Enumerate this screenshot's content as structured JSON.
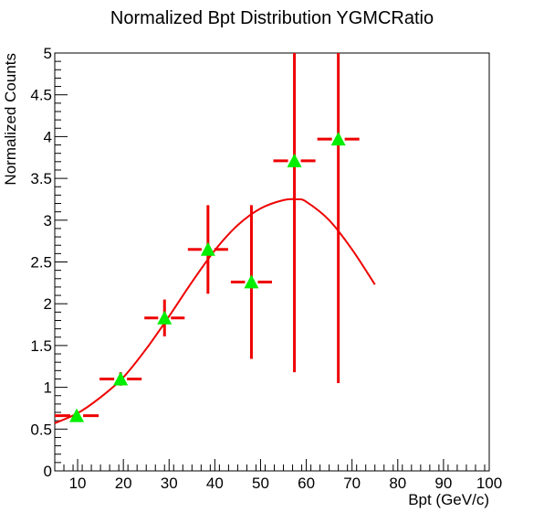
{
  "chart_data": {
    "type": "scatter",
    "title": "Normalized Bpt Distribution YGMCRatio",
    "xlabel": "Bpt (GeV/c)",
    "ylabel": "Normalized Counts",
    "xlim": [
      5,
      100
    ],
    "ylim": [
      0,
      5
    ],
    "grid": false,
    "x_ticks": [
      10,
      20,
      30,
      40,
      50,
      60,
      70,
      80,
      90,
      100
    ],
    "x_tick_labels": [
      "10",
      "20",
      "30",
      "40",
      "50",
      "60",
      "70",
      "80",
      "90",
      "100"
    ],
    "y_ticks": [
      0,
      0.5,
      1,
      1.5,
      2,
      2.5,
      3,
      3.5,
      4,
      4.5,
      5
    ],
    "y_tick_labels": [
      "0",
      "0.5",
      "1",
      "1.5",
      "2",
      "2.5",
      "3",
      "3.5",
      "4",
      "4.5",
      "5"
    ],
    "series": [
      {
        "marker": "triangle-up",
        "marker_color": "#00ee00",
        "error_color": "#ee0000",
        "x": [
          9.8,
          19.4,
          29.0,
          38.5,
          48.0,
          57.4,
          67.0
        ],
        "y": [
          0.66,
          1.1,
          1.83,
          2.65,
          2.26,
          3.71,
          3.97
        ],
        "x_err_low": [
          4.8,
          4.6,
          4.4,
          4.4,
          4.5,
          4.6,
          4.6
        ],
        "x_err_high": [
          4.8,
          4.6,
          4.4,
          4.4,
          4.5,
          4.6,
          4.6
        ],
        "y_err_low": [
          0.04,
          0.08,
          0.22,
          0.53,
          0.92,
          2.53,
          2.92
        ],
        "y_err_high": [
          0.04,
          0.08,
          0.22,
          0.53,
          0.92,
          1.29,
          1.03
        ]
      }
    ],
    "fit_curve": {
      "color": "#ee0000",
      "x": [
        5,
        10,
        15,
        20,
        25,
        30,
        35,
        40,
        45,
        50,
        55,
        58,
        60,
        65,
        70,
        75
      ],
      "y": [
        0.57,
        0.69,
        0.88,
        1.12,
        1.46,
        1.85,
        2.26,
        2.64,
        2.94,
        3.14,
        3.24,
        3.25,
        3.22,
        3.0,
        2.65,
        2.23
      ]
    }
  }
}
